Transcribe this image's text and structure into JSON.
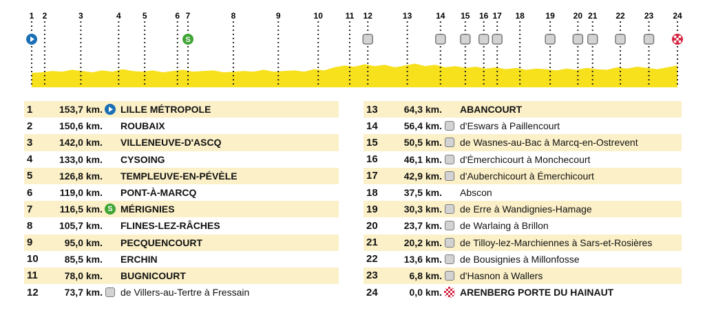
{
  "colors": {
    "profile_fill": "#f7e01c",
    "row_shade": "#fbf0c8",
    "start": "#1b6fb5",
    "sprint": "#3fa535",
    "finish": "#d4213d",
    "cobble": "#d3d3d3"
  },
  "profile": {
    "markers": [
      {
        "n": "1",
        "icon": "start-icon",
        "km": 153.7
      },
      {
        "n": "2",
        "icon": "",
        "km": 150.6
      },
      {
        "n": "3",
        "icon": "",
        "km": 142.0
      },
      {
        "n": "4",
        "icon": "",
        "km": 133.0
      },
      {
        "n": "5",
        "icon": "",
        "km": 126.8
      },
      {
        "n": "6",
        "icon": "",
        "km": 119.0
      },
      {
        "n": "7",
        "icon": "sprint-icon",
        "km": 116.5
      },
      {
        "n": "8",
        "icon": "",
        "km": 105.7
      },
      {
        "n": "9",
        "icon": "",
        "km": 95.0
      },
      {
        "n": "10",
        "icon": "",
        "km": 85.5
      },
      {
        "n": "11",
        "icon": "",
        "km": 78.0
      },
      {
        "n": "12",
        "icon": "cobble-icon",
        "km": 73.7
      },
      {
        "n": "13",
        "icon": "",
        "km": 64.3
      },
      {
        "n": "14",
        "icon": "cobble-icon",
        "km": 56.4
      },
      {
        "n": "15",
        "icon": "cobble-icon",
        "km": 50.5
      },
      {
        "n": "16",
        "icon": "cobble-icon",
        "km": 46.1
      },
      {
        "n": "17",
        "icon": "cobble-icon",
        "km": 42.9
      },
      {
        "n": "18",
        "icon": "",
        "km": 37.5
      },
      {
        "n": "19",
        "icon": "cobble-icon",
        "km": 30.3
      },
      {
        "n": "20",
        "icon": "cobble-icon",
        "km": 23.7
      },
      {
        "n": "21",
        "icon": "cobble-icon",
        "km": 20.2
      },
      {
        "n": "22",
        "icon": "cobble-icon",
        "km": 13.6
      },
      {
        "n": "23",
        "icon": "cobble-icon",
        "km": 6.8
      },
      {
        "n": "24",
        "icon": "finish-icon",
        "km": 0.0
      }
    ]
  },
  "left_table": [
    {
      "num": "1",
      "dist": "153,7 km.",
      "icon": "start-icon",
      "place": "LILLE MÉTROPOLE",
      "caps": true
    },
    {
      "num": "2",
      "dist": "150,6 km.",
      "icon": "",
      "place": "ROUBAIX",
      "caps": true
    },
    {
      "num": "3",
      "dist": "142,0 km.",
      "icon": "",
      "place": "VILLENEUVE-D'ASCQ",
      "caps": true
    },
    {
      "num": "4",
      "dist": "133,0 km.",
      "icon": "",
      "place": "CYSOING",
      "caps": true
    },
    {
      "num": "5",
      "dist": "126,8 km.",
      "icon": "",
      "place": "TEMPLEUVE-EN-PÉVÈLE",
      "caps": true
    },
    {
      "num": "6",
      "dist": "119,0 km.",
      "icon": "",
      "place": "PONT-À-MARCQ",
      "caps": true
    },
    {
      "num": "7",
      "dist": "116,5 km.",
      "icon": "sprint-icon",
      "place": "MÉRIGNIES",
      "caps": true
    },
    {
      "num": "8",
      "dist": "105,7 km.",
      "icon": "",
      "place": "FLINES-LEZ-RÂCHES",
      "caps": true
    },
    {
      "num": "9",
      "dist": "95,0 km.",
      "icon": "",
      "place": "PECQUENCOURT",
      "caps": true
    },
    {
      "num": "10",
      "dist": "85,5 km.",
      "icon": "",
      "place": "ERCHIN",
      "caps": true
    },
    {
      "num": "11",
      "dist": "78,0 km.",
      "icon": "",
      "place": "BUGNICOURT",
      "caps": true
    },
    {
      "num": "12",
      "dist": "73,7 km.",
      "icon": "cobble-icon",
      "place": "de Villers-au-Tertre à Fressain",
      "caps": false
    }
  ],
  "right_table": [
    {
      "num": "13",
      "dist": "64,3 km.",
      "icon": "",
      "place": "ABANCOURT",
      "caps": true
    },
    {
      "num": "14",
      "dist": "56,4 km.",
      "icon": "cobble-icon",
      "place": "d'Eswars à Paillencourt",
      "caps": false
    },
    {
      "num": "15",
      "dist": "50,5 km.",
      "icon": "cobble-icon",
      "place": "de Wasnes-au-Bac à Marcq-en-Ostrevent",
      "caps": false
    },
    {
      "num": "16",
      "dist": "46,1 km.",
      "icon": "cobble-icon",
      "place": "d'Émerchicourt à Monchecourt",
      "caps": false
    },
    {
      "num": "17",
      "dist": "42,9 km.",
      "icon": "cobble-icon",
      "place": "d'Auberchicourt à Émerchicourt",
      "caps": false
    },
    {
      "num": "18",
      "dist": "37,5 km.",
      "icon": "",
      "place": "Abscon",
      "caps": false
    },
    {
      "num": "19",
      "dist": "30,3 km.",
      "icon": "cobble-icon",
      "place": "de Erre à Wandignies-Hamage",
      "caps": false
    },
    {
      "num": "20",
      "dist": "23,7 km.",
      "icon": "cobble-icon",
      "place": "de Warlaing à Brillon",
      "caps": false
    },
    {
      "num": "21",
      "dist": "20,2 km.",
      "icon": "cobble-icon",
      "place": "de Tilloy-lez-Marchiennes à Sars-et-Rosières",
      "caps": false
    },
    {
      "num": "22",
      "dist": "13,6 km.",
      "icon": "cobble-icon",
      "place": "de Bousignies à Millonfosse",
      "caps": false
    },
    {
      "num": "23",
      "dist": "6,8 km.",
      "icon": "cobble-icon",
      "place": "d'Hasnon à Wallers",
      "caps": false
    },
    {
      "num": "24",
      "dist": "0,0 km.",
      "icon": "finish-icon",
      "place": "ARENBERG PORTE DU HAINAUT",
      "caps": true
    }
  ]
}
